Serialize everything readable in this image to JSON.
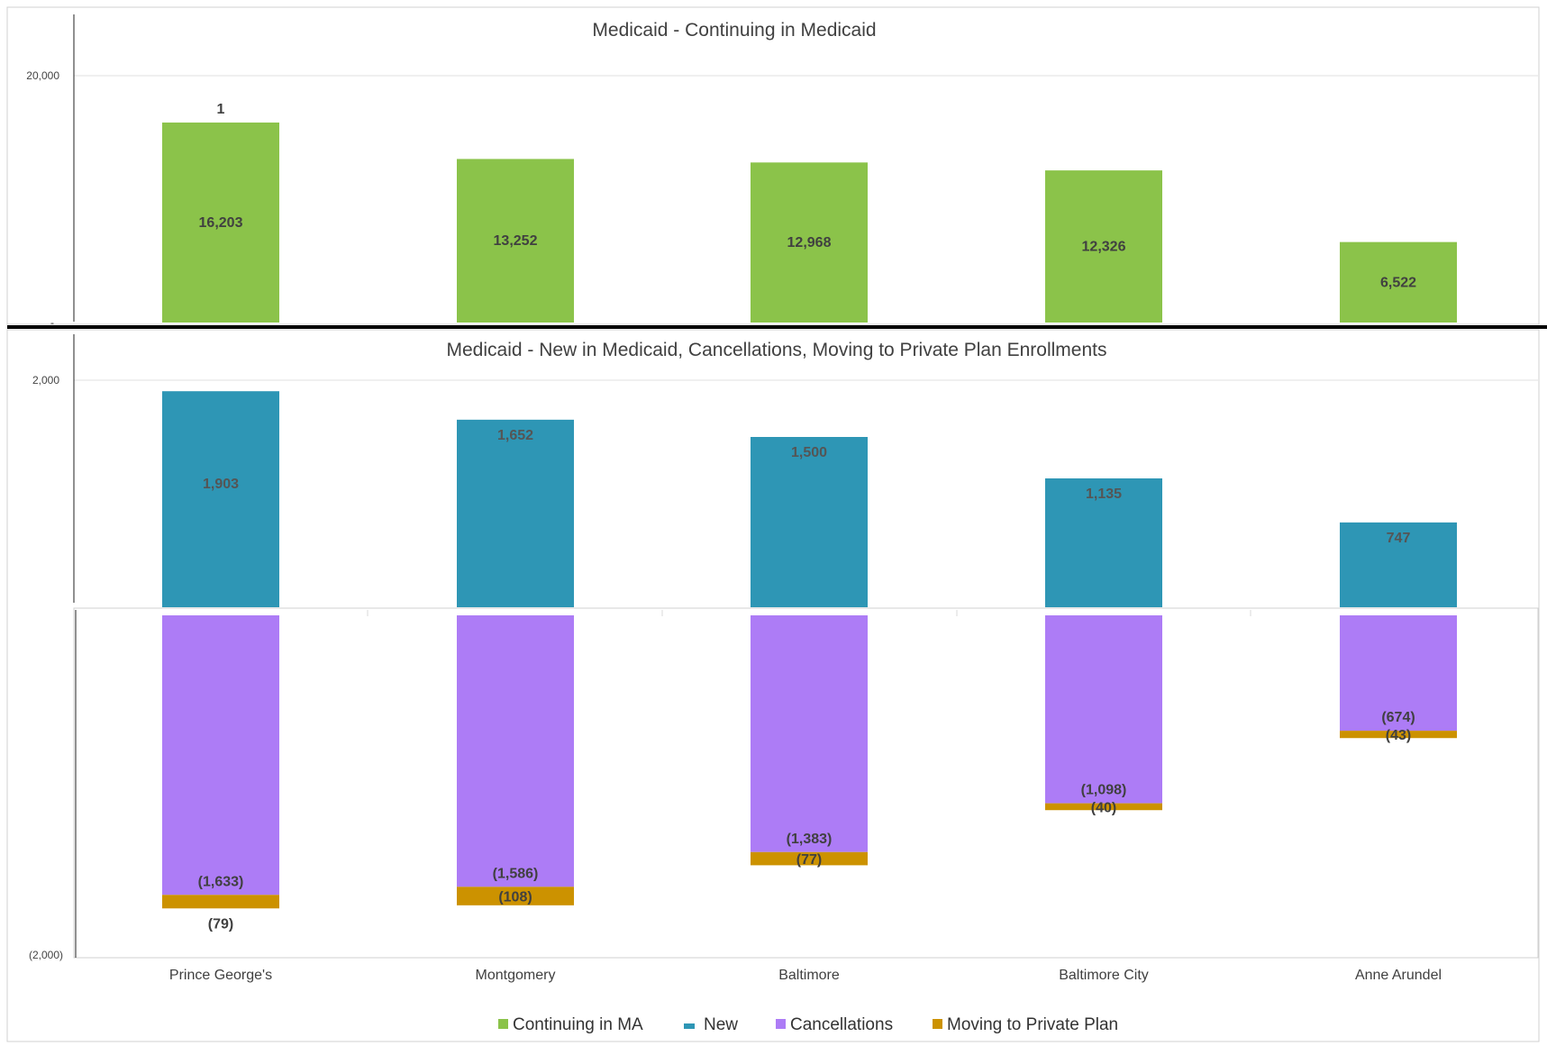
{
  "chart_data": [
    {
      "type": "bar",
      "title": "Medicaid - Continuing in Medicaid",
      "categories": [
        "Prince George's",
        "Montgomery",
        "Baltimore",
        "Baltimore City",
        "Anne Arundel"
      ],
      "series": [
        {
          "name": "Continuing in MA",
          "color": "#8BC34A",
          "values": [
            16203,
            13252,
            12968,
            12326,
            6522
          ]
        }
      ],
      "top_labels": [
        "1",
        "",
        "",
        "",
        ""
      ],
      "ylim": [
        0,
        25000
      ],
      "yticks": [
        {
          "value": 20000,
          "label": "20,000"
        },
        {
          "value": 0,
          "label": "-"
        }
      ],
      "grid": true
    },
    {
      "type": "bar",
      "title": "Medicaid - New in Medicaid, Cancellations, Moving to Private Plan Enrollments",
      "categories": [
        "Prince George's",
        "Montgomery",
        "Baltimore",
        "Baltimore City",
        "Anne Arundel"
      ],
      "series": [
        {
          "name": "New",
          "color": "#2E96B5",
          "values": [
            1903,
            1652,
            1500,
            1135,
            747
          ],
          "labels": [
            "1,903",
            "1,652",
            "1,500",
            "1,135",
            "747"
          ]
        },
        {
          "name": "Cancellations",
          "color": "#AD7CF6",
          "values": [
            -1633,
            -1586,
            -1383,
            -1098,
            -674
          ],
          "labels": [
            "(1,633)",
            "(1,586)",
            "(1,383)",
            "(1,098)",
            "(674)"
          ]
        },
        {
          "name": "Moving to Private Plan",
          "color": "#CC9200",
          "values": [
            -79,
            -108,
            -77,
            -40,
            -43
          ],
          "labels": [
            "(79)",
            "(108)",
            "(77)",
            "(40)",
            "(43)"
          ]
        }
      ],
      "yticks": [
        {
          "value": 2000,
          "label": "2,000"
        },
        {
          "value": -2000,
          "label": "(2,000)"
        }
      ],
      "grid": true,
      "legend_position": "bottom"
    }
  ],
  "top_chart_value_labels": [
    "16,203",
    "13,252",
    "12,968",
    "12,326",
    "6,522"
  ]
}
